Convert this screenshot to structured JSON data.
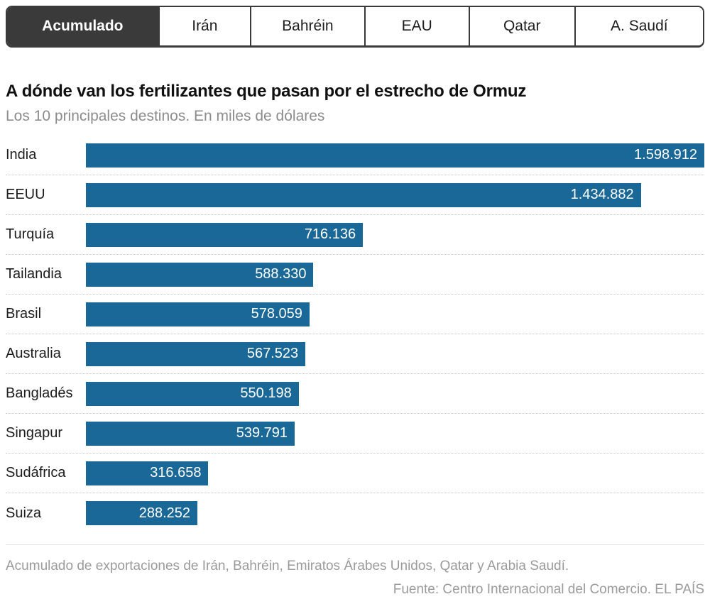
{
  "tabs": {
    "items": [
      {
        "label": "Acumulado",
        "active": true
      },
      {
        "label": "Irán",
        "active": false
      },
      {
        "label": "Bahréin",
        "active": false
      },
      {
        "label": "EAU",
        "active": false
      },
      {
        "label": "Qatar",
        "active": false
      },
      {
        "label": "A. Saudí",
        "active": false
      }
    ]
  },
  "chart_data": {
    "type": "bar",
    "orientation": "horizontal",
    "title": "A dónde van los fertilizantes que pasan por el estrecho de Ormuz",
    "subtitle": "Los 10 principales destinos. En miles de dólares",
    "categories": [
      "India",
      "EEUU",
      "Turquía",
      "Tailandia",
      "Brasil",
      "Australia",
      "Bangladés",
      "Singapur",
      "Sudáfrica",
      "Suiza"
    ],
    "values": [
      1598912,
      1434882,
      716136,
      588330,
      578059,
      567523,
      550198,
      539791,
      316658,
      288252
    ],
    "value_labels": [
      "1.598.912",
      "1.434.882",
      "716.136",
      "588.330",
      "578.059",
      "567.523",
      "550.198",
      "539.791",
      "316.658",
      "288.252"
    ],
    "xlim": [
      0,
      1598912
    ],
    "grid": false,
    "value_label_position": "inside-end",
    "bar_color": "#1a6898"
  },
  "footer": {
    "note": "Acumulado de exportaciones de Irán, Bahréin, Emiratos Árabes Unidos, Qatar y Arabia Saudí.",
    "source": "Fuente: Centro Internacional del Comercio. EL PAÍS"
  },
  "colors": {
    "bar": "#1a6898",
    "tab_active_bg": "#3a3a3a",
    "tab_border": "#3a3a3a",
    "title": "#111111",
    "subtitle": "#8c8c8c",
    "footer_text": "#9b9b9b",
    "bar_value_text": "#ffffff"
  }
}
